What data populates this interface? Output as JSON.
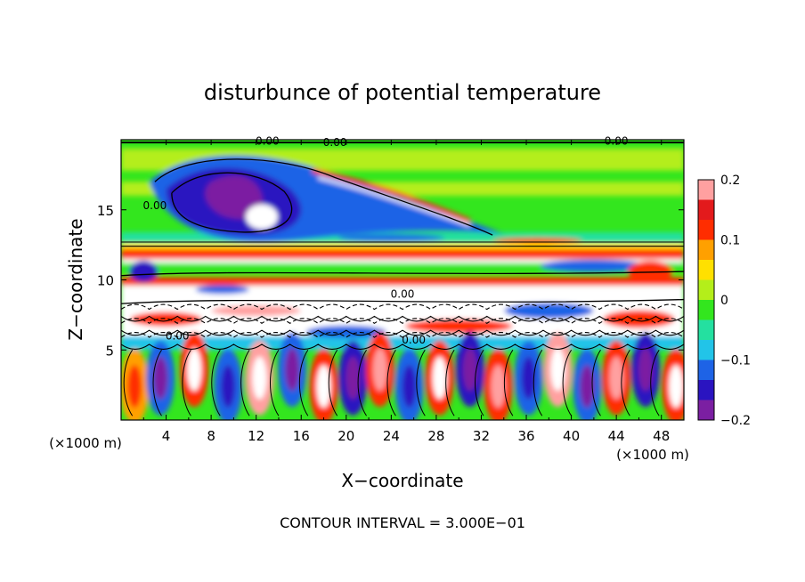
{
  "chart_data": {
    "type": "heatmap",
    "title": "disturbunce of potential temperature",
    "xlabel": "X−coordinate",
    "ylabel": "Z−coordinate",
    "x_unit": "(×1000 m)",
    "z_unit": "(×1000 m)",
    "xlim": [
      0,
      50
    ],
    "ylim": [
      0,
      20
    ],
    "x_ticks": [
      4,
      8,
      12,
      16,
      20,
      24,
      28,
      32,
      36,
      40,
      44,
      48
    ],
    "y_ticks": [
      5,
      10,
      15
    ],
    "colorbar": {
      "range": [
        -0.2,
        0.2
      ],
      "ticks": [
        0.2,
        0.1,
        0,
        -0.1,
        -0.2
      ],
      "tick_labels": [
        "0.2",
        "0.1",
        "0",
        "−0.1",
        "−0.2"
      ]
    },
    "contour_labels": [
      "0.00",
      "0.00",
      "0.00",
      "0.00",
      "0.00",
      "0.00",
      "0.00"
    ],
    "footer": "CONTOUR INTERVAL = 3.000E−01",
    "colors": [
      "#7b1fa2",
      "#2a14c0",
      "#1e63e6",
      "#22c4e8",
      "#24e0a0",
      "#33e61e",
      "#b4ee1a",
      "#ffe000",
      "#ffa000",
      "#ff2d00",
      "#e31a1c",
      "#ffa0a0"
    ]
  }
}
